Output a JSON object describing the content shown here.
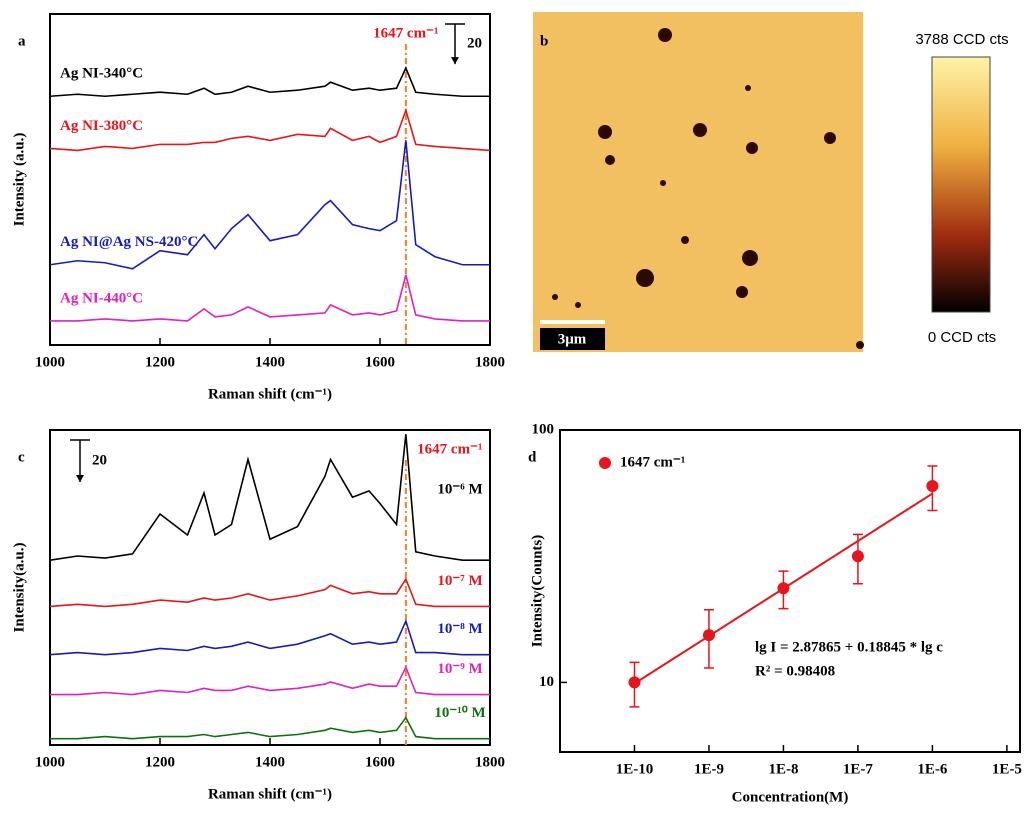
{
  "chart_data": [
    {
      "type": "line",
      "panel_label": "a",
      "x_label": "Raman shift (cm⁻¹)",
      "y_label": "Intensity (a.u.)",
      "x": [
        1000,
        1050,
        1100,
        1150,
        1200,
        1250,
        1280,
        1300,
        1330,
        1360,
        1400,
        1450,
        1500,
        1510,
        1550,
        1580,
        1600,
        1630,
        1647,
        1665,
        1700,
        1750,
        1800
      ],
      "series": [
        {
          "name": "Ag NI-340°C",
          "color": "#000000",
          "values": [
            124,
            125,
            124,
            125,
            126,
            125,
            128,
            125,
            126,
            129,
            126,
            127,
            129,
            131,
            127,
            128,
            127,
            128,
            138,
            126,
            125,
            124,
            124
          ]
        },
        {
          "name": "Ag NI-380°C",
          "color": "#e8141b",
          "values": [
            98,
            97,
            99,
            98,
            100,
            100,
            101,
            101,
            103,
            104,
            102,
            105,
            104,
            108,
            102,
            104,
            101,
            104,
            117,
            100,
            99,
            98,
            97
          ]
        },
        {
          "name": "Ag NI@Ag NS-420°C",
          "color": "#1a1ab8",
          "values": [
            40,
            42,
            41,
            38,
            47,
            45,
            55,
            48,
            58,
            65,
            52,
            55,
            70,
            72,
            60,
            58,
            57,
            62,
            102,
            50,
            44,
            40,
            40
          ]
        },
        {
          "name": "Ag NI-440°C",
          "color": "#e020c0",
          "values": [
            12,
            12,
            13,
            12,
            13,
            12,
            18,
            14,
            15,
            19,
            14,
            15,
            16,
            20,
            15,
            16,
            15,
            17,
            35,
            15,
            13,
            12,
            12
          ]
        }
      ],
      "xlim": [
        1000,
        1800
      ],
      "xticks": [
        1000,
        1200,
        1400,
        1600,
        1800
      ],
      "ylim": [
        0,
        165
      ],
      "marker_line": 1647,
      "marker_label": "1647 cm⁻¹",
      "marker_color": "#f08020",
      "scale_bar": 20
    },
    {
      "type": "image",
      "panel_label": "b",
      "colorbar_max_label": "3788 CCD cts",
      "colorbar_min_label": "0 CCD cts",
      "scale_bar_label": "3μm"
    },
    {
      "type": "line",
      "panel_label": "c",
      "x_label": "Raman shift (cm⁻¹)",
      "y_label": "Intensity(a.u.)",
      "x": [
        1000,
        1050,
        1100,
        1150,
        1200,
        1250,
        1280,
        1300,
        1330,
        1360,
        1400,
        1450,
        1500,
        1510,
        1550,
        1580,
        1600,
        1630,
        1647,
        1665,
        1700,
        1750,
        1800
      ],
      "series": [
        {
          "name": "10⁻⁶ M",
          "color": "#000000",
          "values": [
            88,
            90,
            89,
            91,
            110,
            100,
            120,
            100,
            105,
            136,
            98,
            104,
            128,
            136,
            118,
            121,
            115,
            105,
            148,
            92,
            90,
            88,
            88
          ]
        },
        {
          "name": "10⁻⁷ M",
          "color": "#e8141b",
          "values": [
            66,
            67,
            66,
            67,
            69,
            68,
            70,
            69,
            70,
            72,
            69,
            71,
            74,
            76,
            72,
            73,
            72,
            72,
            79,
            67,
            66,
            66,
            66
          ]
        },
        {
          "name": "10⁻⁸ M",
          "color": "#1a1ab8",
          "values": [
            43,
            44,
            43,
            44,
            46,
            45,
            47,
            46,
            47,
            49,
            46,
            48,
            52,
            53,
            48,
            49,
            48,
            49,
            59,
            44,
            44,
            43,
            43
          ]
        },
        {
          "name": "10⁻⁹ M",
          "color": "#e020c0",
          "values": [
            24,
            24,
            25,
            24,
            26,
            25,
            27,
            26,
            26,
            28,
            26,
            27,
            29,
            30,
            27,
            29,
            28,
            28,
            37,
            25,
            24,
            24,
            24
          ]
        },
        {
          "name": "10⁻¹⁰ M",
          "color": "#107010",
          "values": [
            3,
            3,
            4,
            3,
            4,
            4,
            5,
            4,
            5,
            6,
            4,
            5,
            7,
            8,
            6,
            7,
            6,
            7,
            13,
            4,
            3,
            3,
            3
          ]
        }
      ],
      "xlim": [
        1000,
        1800
      ],
      "xticks": [
        1000,
        1200,
        1400,
        1600,
        1800
      ],
      "ylim": [
        0,
        150
      ],
      "marker_line": 1647,
      "marker_label": "1647 cm⁻¹",
      "marker_color": "#f08020",
      "scale_bar": 20
    },
    {
      "type": "scatter",
      "panel_label": "d",
      "x_label": "Concentration(M)",
      "y_label": "Intensity(Counts)",
      "x_log": true,
      "y_log": true,
      "x": [
        1e-10,
        1e-09,
        1e-08,
        1e-07,
        1e-06
      ],
      "series": [
        {
          "name": "1647 cm⁻¹",
          "color": "#e8141b",
          "values": [
            10,
            15.4,
            23.6,
            31.6,
            60
          ],
          "errors": [
            2,
            4,
            4,
            7,
            12
          ]
        }
      ],
      "fit_line": {
        "x": [
          1e-10,
          1e-06
        ],
        "y": [
          9.9,
          56
        ]
      },
      "annotations": [
        "lg I = 2.87865 + 0.18845 * lg c",
        "R² = 0.98408"
      ],
      "xlim": [
        1e-11,
        1.5e-05
      ],
      "ylim": [
        5.3,
        100
      ],
      "xticks": [
        {
          "value": 1e-10,
          "label": "1E-10"
        },
        {
          "value": 1e-09,
          "label": "1E-9"
        },
        {
          "value": 1e-08,
          "label": "1E-8"
        },
        {
          "value": 1e-07,
          "label": "1E-7"
        },
        {
          "value": 1e-06,
          "label": "1E-6"
        },
        {
          "value": 1e-05,
          "label": "1E-5"
        }
      ],
      "yticks": [
        10,
        100
      ]
    }
  ]
}
